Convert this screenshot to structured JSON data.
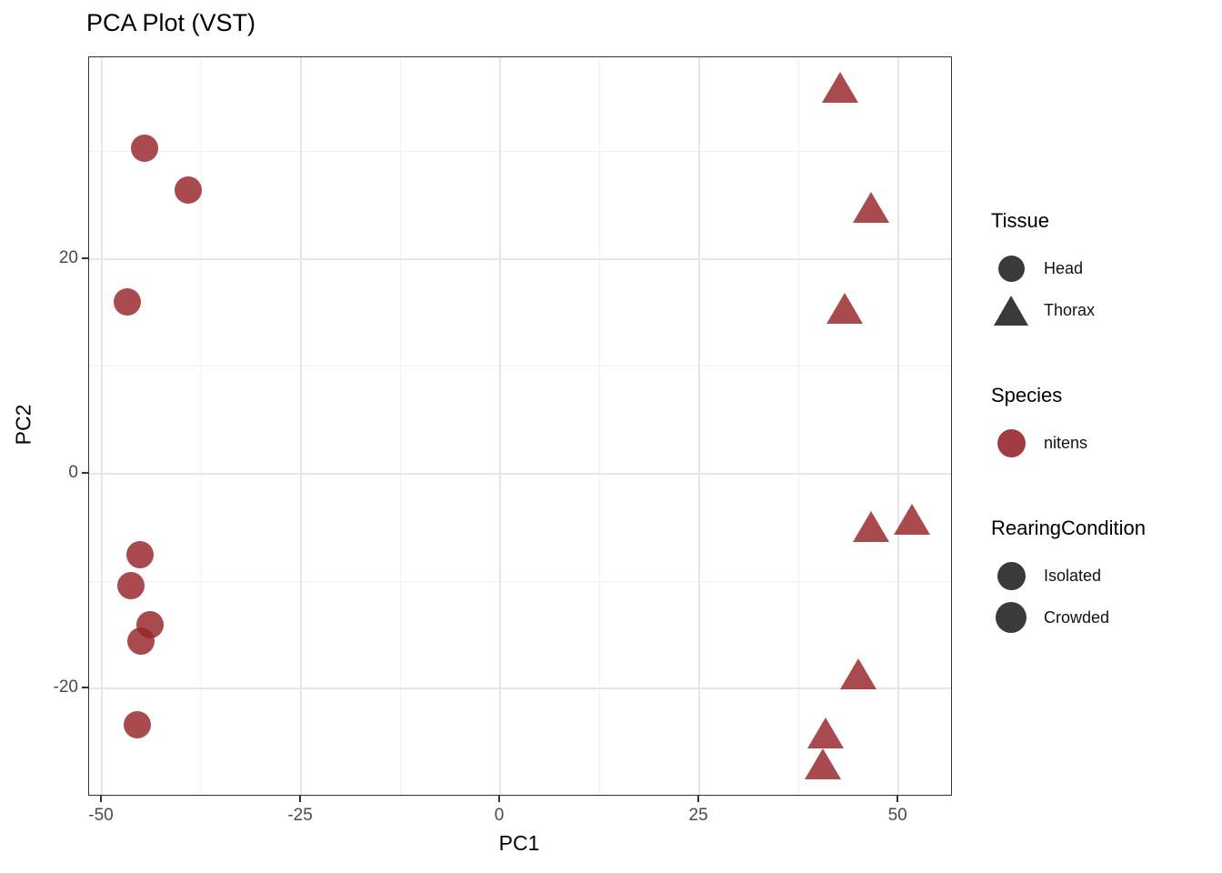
{
  "title": "PCA Plot (VST)",
  "colors": {
    "point_fill": "rgba(153,39,45,0.84)",
    "legend_symbol_dark": "#3a3a3a",
    "legend_symbol_species": "rgba(153,39,45,0.9)",
    "axis_text": "#4a4a4a"
  },
  "chart_data": {
    "type": "scatter",
    "title": "PCA Plot (VST)",
    "xlabel": "PC1",
    "ylabel": "PC2",
    "xlim": [
      -51.6,
      56.6
    ],
    "ylim": [
      -29.9,
      38.8
    ],
    "x_ticks": [
      -50,
      -25,
      0,
      25,
      50
    ],
    "y_ticks": [
      -20,
      0,
      20
    ],
    "grid": "major+minor",
    "legend_position": "right",
    "series": [
      {
        "name": "Head",
        "shape": "circle",
        "points": [
          {
            "x": -44.6,
            "y": 30.3
          },
          {
            "x": -39.2,
            "y": 26.4
          },
          {
            "x": -46.8,
            "y": 16.0
          },
          {
            "x": -45.2,
            "y": -7.5
          },
          {
            "x": -46.3,
            "y": -10.4
          },
          {
            "x": -43.9,
            "y": -14.1
          },
          {
            "x": -45.1,
            "y": -15.6
          },
          {
            "x": -45.5,
            "y": -23.4
          }
        ]
      },
      {
        "name": "Thorax",
        "shape": "triangle",
        "points": [
          {
            "x": 42.7,
            "y": 36.0
          },
          {
            "x": 46.6,
            "y": 24.8
          },
          {
            "x": 43.3,
            "y": 15.4
          },
          {
            "x": 46.6,
            "y": -4.9
          },
          {
            "x": 51.7,
            "y": -4.2
          },
          {
            "x": 45.0,
            "y": -18.6
          },
          {
            "x": 40.9,
            "y": -24.1
          },
          {
            "x": 40.5,
            "y": -27.0
          }
        ]
      }
    ]
  },
  "legend": {
    "groups": [
      {
        "title": "Tissue",
        "items": [
          {
            "label": "Head",
            "shape": "circle",
            "color": "#3a3a3a",
            "size": 29
          },
          {
            "label": "Thorax",
            "shape": "triangle",
            "color": "#3a3a3a",
            "size": 33
          }
        ]
      },
      {
        "title": "Species",
        "items": [
          {
            "label": "nitens",
            "shape": "circle",
            "color": "rgba(153,39,45,0.9)",
            "size": 31
          }
        ]
      },
      {
        "title": "RearingCondition",
        "items": [
          {
            "label": "Isolated",
            "shape": "circle",
            "color": "#3a3a3a",
            "size": 31
          },
          {
            "label": "Crowded",
            "shape": "circle",
            "color": "#3a3a3a",
            "size": 34
          }
        ]
      }
    ]
  }
}
